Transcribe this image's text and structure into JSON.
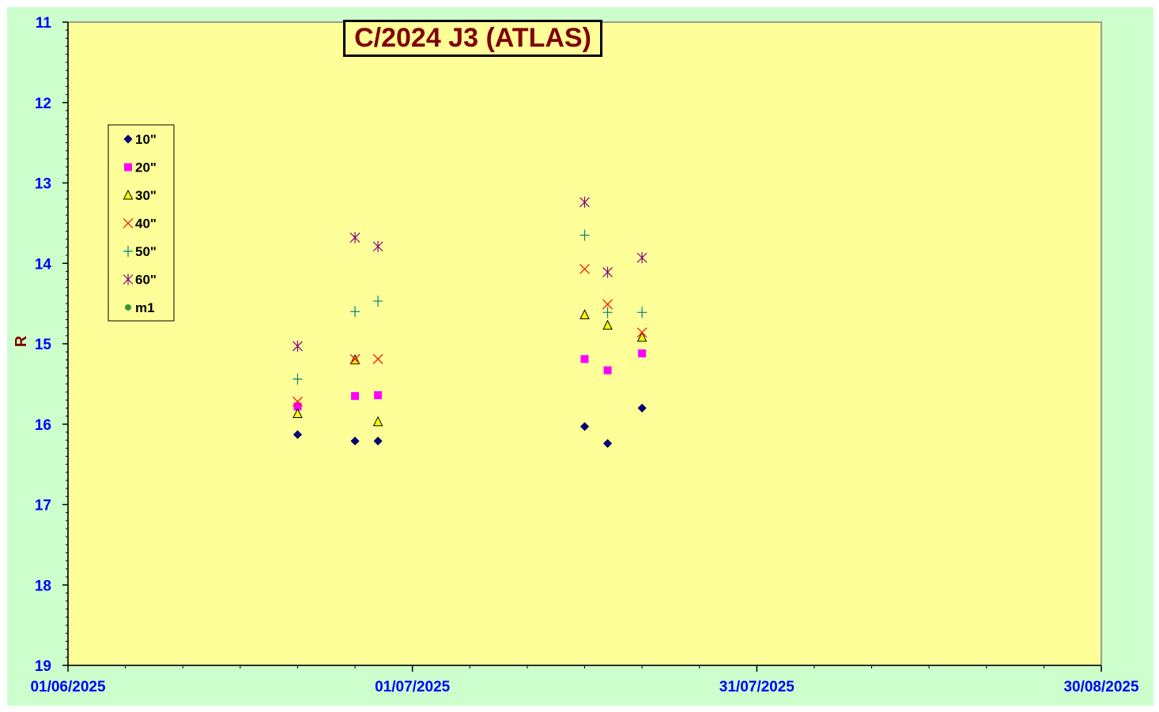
{
  "chart_data": {
    "type": "scatter",
    "title": "C/2024 J3 (ATLAS)",
    "xlabel": "",
    "ylabel": "R",
    "x_ticks": [
      "01/06/2025",
      "01/07/2025",
      "31/07/2025",
      "30/08/2025"
    ],
    "x_range": [
      "2025-06-01",
      "2025-08-30"
    ],
    "y_ticks": [
      "11",
      "12",
      "13",
      "14",
      "15",
      "16",
      "17",
      "18",
      "19"
    ],
    "ylim": [
      11,
      19
    ],
    "y_inverted": true,
    "grid": false,
    "legend_position": "left",
    "series": [
      {
        "name": "10\"",
        "marker": "diamond",
        "color": "#000080",
        "points": [
          [
            "2025-06-21",
            16.13
          ],
          [
            "2025-06-26",
            16.21
          ],
          [
            "2025-06-28",
            16.21
          ],
          [
            "2025-07-16",
            16.03
          ],
          [
            "2025-07-18",
            16.24
          ],
          [
            "2025-07-21",
            15.8
          ]
        ]
      },
      {
        "name": "20\"",
        "marker": "square",
        "color": "#ff00ff",
        "points": [
          [
            "2025-06-21",
            15.78
          ],
          [
            "2025-06-26",
            15.65
          ],
          [
            "2025-06-28",
            15.64
          ],
          [
            "2025-07-16",
            15.19
          ],
          [
            "2025-07-18",
            15.33
          ],
          [
            "2025-07-21",
            15.12
          ]
        ]
      },
      {
        "name": "30\"",
        "marker": "triangle",
        "color": "#ffff00",
        "points": [
          [
            "2025-06-21",
            15.87
          ],
          [
            "2025-06-26",
            15.2
          ],
          [
            "2025-06-28",
            15.97
          ],
          [
            "2025-07-16",
            14.64
          ],
          [
            "2025-07-18",
            14.77
          ],
          [
            "2025-07-21",
            14.92
          ]
        ]
      },
      {
        "name": "40\"",
        "marker": "x",
        "color": "#ff0000",
        "points": [
          [
            "2025-06-21",
            15.72
          ],
          [
            "2025-06-26",
            15.19
          ],
          [
            "2025-06-28",
            15.19
          ],
          [
            "2025-07-16",
            14.07
          ],
          [
            "2025-07-18",
            14.51
          ],
          [
            "2025-07-21",
            14.86
          ]
        ]
      },
      {
        "name": "50\"",
        "marker": "plus",
        "color": "#008080",
        "points": [
          [
            "2025-06-21",
            15.44
          ],
          [
            "2025-06-26",
            14.6
          ],
          [
            "2025-06-28",
            14.47
          ],
          [
            "2025-07-16",
            13.65
          ],
          [
            "2025-07-18",
            14.61
          ],
          [
            "2025-07-21",
            14.61
          ]
        ]
      },
      {
        "name": "60\"",
        "marker": "star",
        "color": "#800080",
        "points": [
          [
            "2025-06-21",
            15.03
          ],
          [
            "2025-06-26",
            13.68
          ],
          [
            "2025-06-28",
            13.79
          ],
          [
            "2025-07-16",
            13.24
          ],
          [
            "2025-07-18",
            14.11
          ],
          [
            "2025-07-21",
            13.93
          ]
        ]
      },
      {
        "name": "m1",
        "marker": "circle",
        "color": "#339933",
        "points": []
      }
    ],
    "colors": {
      "outer_background": "#ccffcc",
      "plot_background": "#ffff99",
      "tick_label": "#0000ff",
      "title": "#800000"
    }
  }
}
